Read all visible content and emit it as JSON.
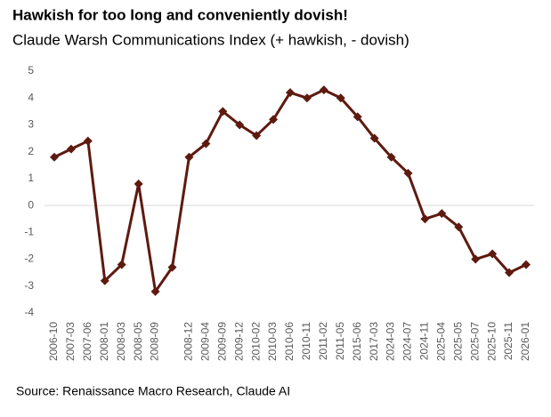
{
  "chart_data": {
    "type": "line",
    "title": "Hawkish for too long and conveniently dovish!",
    "subtitle": "Claude Warsh Communications Index (+ hawkish, - dovish)",
    "source": "Source: Renaissance Macro Research, Claude AI",
    "categories": [
      "2006-10",
      "2007-03",
      "2007-06",
      "2008-01",
      "2008-03",
      "2008-05",
      "2008-09",
      null,
      "2008-12",
      "2009-04",
      "2009-09",
      "2009-12",
      "2010-02",
      "2010-03",
      "2010-06",
      "2010-11",
      "2011-02",
      "2011-05",
      "2015-06",
      "2017-03",
      "2024-03",
      "2024-07",
      "2024-11",
      "2025-04",
      "2025-05",
      "2025-07",
      "2025-10",
      "2025-11",
      "2026-01"
    ],
    "series": [
      {
        "name": "Claude Warsh Communications Index",
        "color": "#5e1a10",
        "values": [
          1.8,
          2.1,
          2.4,
          -2.8,
          -2.2,
          0.8,
          -3.2,
          -2.3,
          1.8,
          2.3,
          3.5,
          3.0,
          2.6,
          3.2,
          4.2,
          4.0,
          4.3,
          4.0,
          3.3,
          2.5,
          1.8,
          1.2,
          -0.5,
          -0.3,
          -0.8,
          -2.0,
          -1.8,
          -2.5,
          -2.2
        ]
      }
    ],
    "ylim": [
      -4,
      5
    ],
    "yticks": [
      -4,
      -3,
      -2,
      -1,
      0,
      1,
      2,
      3,
      4,
      5
    ],
    "grid": false
  }
}
